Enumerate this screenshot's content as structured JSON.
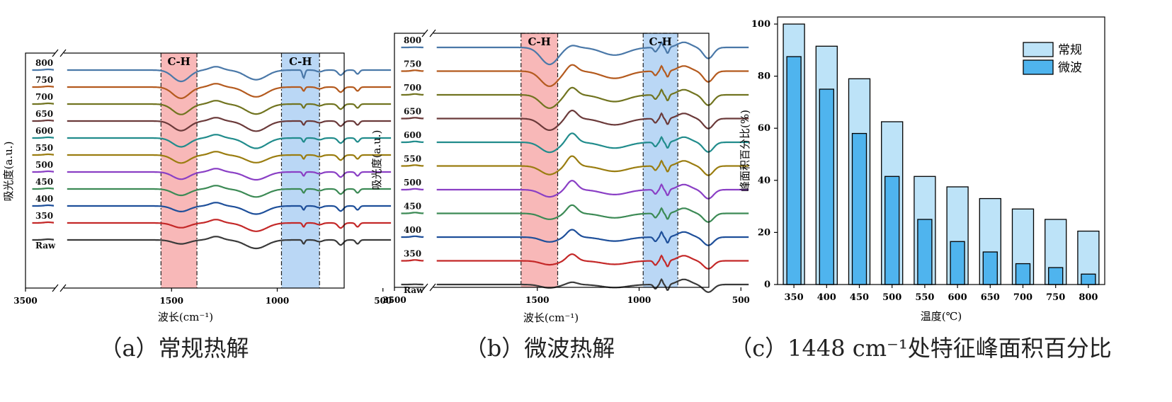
{
  "chart_data": [
    {
      "type": "line",
      "panel": "a",
      "caption": "（a）常规热解",
      "xlabel": "波长(cm⁻¹)",
      "ylabel": "吸光度(a.u.)",
      "xlim": [
        3500,
        450
      ],
      "x_ticks": [
        "3500",
        "1500",
        "1000",
        "500"
      ],
      "bands": [
        {
          "label": "C-H",
          "from": 1550,
          "to": 1380,
          "color": "#f6a6a6"
        },
        {
          "label": "C-H",
          "from": 980,
          "to": 800,
          "color": "#a9cdf3"
        }
      ],
      "series": [
        {
          "name": "800",
          "color": "#4a78a8"
        },
        {
          "name": "750",
          "color": "#b45a1e"
        },
        {
          "name": "700",
          "color": "#717420"
        },
        {
          "name": "650",
          "color": "#6b3a3a"
        },
        {
          "name": "600",
          "color": "#218c8c"
        },
        {
          "name": "550",
          "color": "#9a7d10"
        },
        {
          "name": "500",
          "color": "#8a3fc5"
        },
        {
          "name": "450",
          "color": "#3c8a55"
        },
        {
          "name": "400",
          "color": "#1e4f9a"
        },
        {
          "name": "350",
          "color": "#c42828"
        },
        {
          "name": "Raw",
          "color": "#3a3a3a"
        }
      ]
    },
    {
      "type": "line",
      "panel": "b",
      "caption": "（b）微波热解",
      "xlabel": "波长(cm⁻¹)",
      "ylabel": "吸光度(a.u.)",
      "xlim": [
        3500,
        450
      ],
      "x_ticks": [
        "3500",
        "1500",
        "1000",
        "500"
      ],
      "bands": [
        {
          "label": "C-H",
          "from": 1580,
          "to": 1400,
          "color": "#f6a6a6"
        },
        {
          "label": "C-H",
          "from": 980,
          "to": 810,
          "color": "#a9cdf3"
        }
      ],
      "series": [
        {
          "name": "800",
          "color": "#4a78a8"
        },
        {
          "name": "750",
          "color": "#b45a1e"
        },
        {
          "name": "700",
          "color": "#717420"
        },
        {
          "name": "650",
          "color": "#6b3a3a"
        },
        {
          "name": "600",
          "color": "#218c8c"
        },
        {
          "name": "550",
          "color": "#9a7d10"
        },
        {
          "name": "500",
          "color": "#8a3fc5"
        },
        {
          "name": "450",
          "color": "#3c8a55"
        },
        {
          "name": "400",
          "color": "#1e4f9a"
        },
        {
          "name": "350",
          "color": "#c42828"
        },
        {
          "name": "Raw",
          "color": "#3a3a3a"
        }
      ]
    },
    {
      "type": "bar",
      "panel": "c",
      "caption": "（c）1448 cm⁻¹处特征峰面积百分比",
      "xlabel": "温度(℃)",
      "ylabel": "峰面积百分比(%)",
      "ylim": [
        0,
        100
      ],
      "y_ticks": [
        "0",
        "20",
        "40",
        "60",
        "80",
        "100"
      ],
      "categories": [
        "350",
        "400",
        "450",
        "500",
        "550",
        "600",
        "650",
        "700",
        "750",
        "800"
      ],
      "series": [
        {
          "name": "常规",
          "color": "#bde3f8",
          "values": [
            100,
            91.5,
            79,
            62.5,
            41.5,
            37.5,
            33,
            29,
            25,
            20.5
          ]
        },
        {
          "name": "微波",
          "color": "#4fb4ee",
          "values": [
            87.5,
            75,
            58,
            41.5,
            25,
            16.5,
            12.5,
            8,
            6.5,
            4
          ]
        }
      ],
      "legend": "top-right"
    }
  ]
}
